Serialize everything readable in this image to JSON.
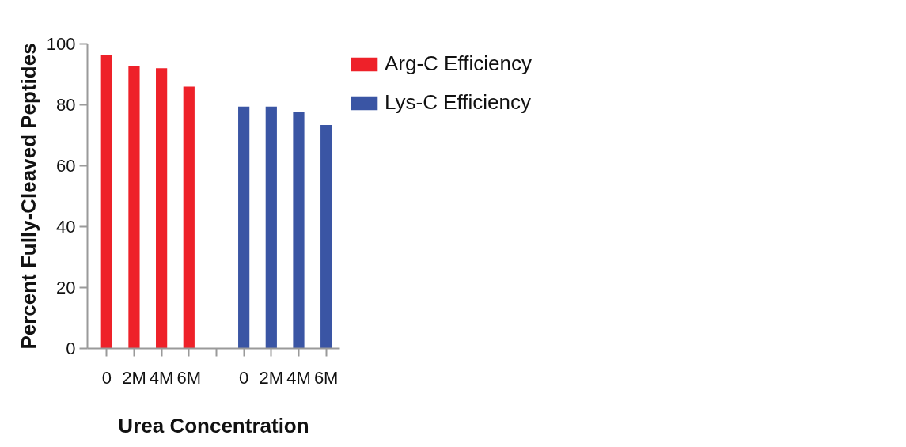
{
  "chart_data": {
    "type": "bar",
    "xlabel": "Urea Concentration",
    "ylabel": "Percent Fully-Cleaved Peptides",
    "categories": [
      "0",
      "2M",
      "4M",
      "6M",
      null,
      "0",
      "2M",
      "4M",
      "6M"
    ],
    "series": [
      {
        "name": "Arg-C Efficiency",
        "color": "#ee2129",
        "values": [
          96.3,
          92.8,
          92.0,
          86.0,
          null,
          null,
          null,
          null,
          null
        ]
      },
      {
        "name": "Lys-C Efficiency",
        "color": "#3a55a4",
        "values": [
          null,
          null,
          null,
          null,
          null,
          79.4,
          79.4,
          77.8,
          73.4
        ]
      }
    ],
    "ylim": [
      0,
      100
    ],
    "yticks": [
      0,
      20,
      40,
      60,
      80,
      100
    ],
    "grid": false,
    "legend": "top right"
  }
}
